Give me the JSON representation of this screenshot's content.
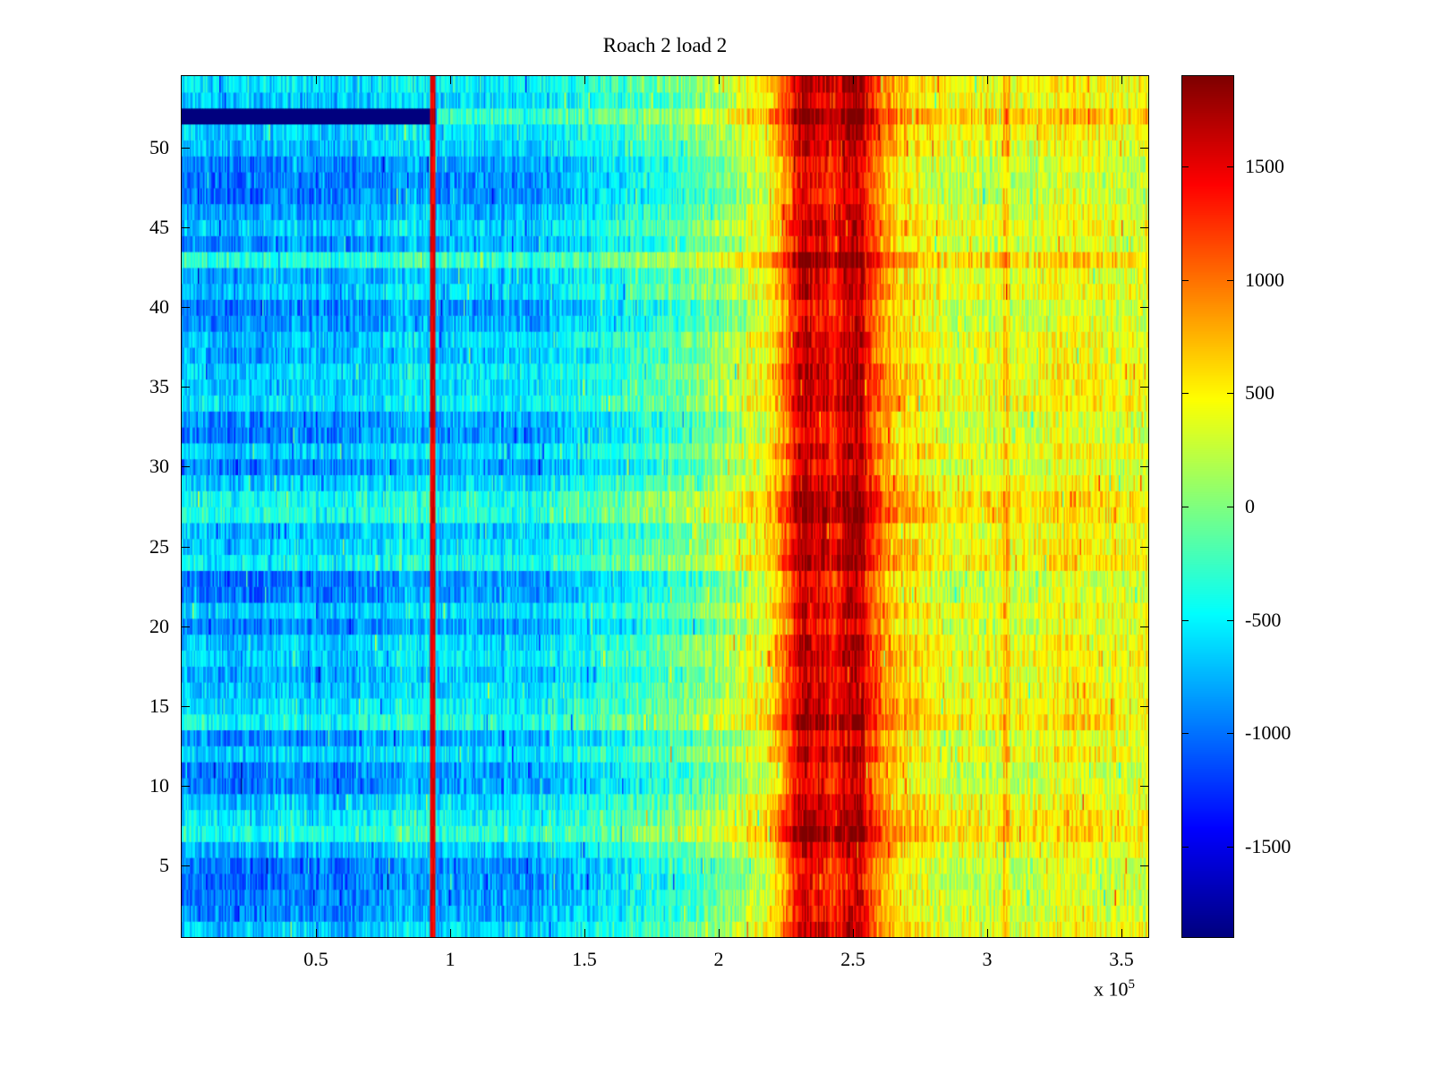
{
  "chart": {
    "title": "Roach 2 load 2",
    "x_exponent_prefix": "x 10",
    "x_exponent": "5"
  },
  "chart_data": {
    "type": "heatmap",
    "title": "Roach 2 load 2",
    "colormap": "jet",
    "x_range": [
      0,
      360000
    ],
    "x_tick_values": [
      50000,
      100000,
      150000,
      200000,
      250000,
      300000,
      350000
    ],
    "x_tick_labels": [
      "0.5",
      "1",
      "1.5",
      "2",
      "2.5",
      "3",
      "3.5"
    ],
    "x_scale_label": "x 10^5",
    "y_range": [
      0.5,
      54.5
    ],
    "rows": 54,
    "cols": 720,
    "y_tick_values": [
      5,
      10,
      15,
      20,
      25,
      30,
      35,
      40,
      45,
      50
    ],
    "y_tick_labels": [
      "5",
      "10",
      "15",
      "20",
      "25",
      "30",
      "35",
      "40",
      "45",
      "50"
    ],
    "value_range": [
      -1900,
      1900
    ],
    "colorbar_tick_values": [
      -1500,
      -1000,
      -500,
      0,
      500,
      1000,
      1500
    ],
    "colorbar_tick_labels": [
      "-1500",
      "-1000",
      "-500",
      "0",
      "500",
      "1000",
      "1500"
    ],
    "base_profile": {
      "x": [
        0,
        20000,
        40000,
        60000,
        78000,
        88000,
        96000,
        115000,
        135000,
        150000,
        165000,
        180000,
        195000,
        208000,
        218000,
        226000,
        232000,
        237000,
        242000,
        247000,
        252000,
        257000,
        263000,
        272000,
        285000,
        305000,
        330000,
        360000
      ],
      "v": [
        -480,
        -540,
        -500,
        -550,
        -420,
        -360,
        -450,
        -500,
        -430,
        -300,
        -160,
        -20,
        140,
        330,
        650,
        1250,
        1850,
        1700,
        1500,
        1750,
        1850,
        1350,
        900,
        680,
        530,
        480,
        540,
        500
      ]
    },
    "row_offsets": [
      -150,
      -350,
      -400,
      -450,
      -450,
      -200,
      150,
      0,
      -150,
      -400,
      -400,
      -100,
      -350,
      100,
      -50,
      -150,
      -250,
      -100,
      -150,
      -400,
      -150,
      -400,
      -450,
      50,
      -100,
      -200,
      150,
      100,
      -150,
      -400,
      -150,
      -400,
      -350,
      -50,
      -150,
      -100,
      -250,
      -150,
      -350,
      -400,
      -150,
      -250,
      200,
      -350,
      -150,
      -300,
      -450,
      -450,
      -400,
      -200,
      -100,
      0,
      -150,
      -50
    ],
    "row_offset_weight": {
      "left": 1.1,
      "right": 0.5
    },
    "features": {
      "red_line": {
        "x_start": 92500,
        "x_end": 94500,
        "value": 1500
      },
      "dark_row": {
        "row": 52,
        "x_end": 92500,
        "value": -2200,
        "right_offset": 150
      },
      "orange_streak": {
        "x_start": 306000,
        "x_end": 308500,
        "boost": 380
      }
    },
    "noise": {
      "seed": 1337,
      "cell_amplitude": 270,
      "column_amplitude": 140,
      "spike_probability": 0.03,
      "spike_amplitude": 650
    }
  }
}
